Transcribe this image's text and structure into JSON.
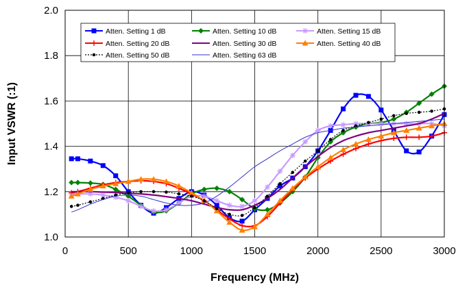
{
  "chart_data": {
    "type": "line",
    "xlabel": "Frequency (MHz)",
    "ylabel": "Input VSWR (:1)",
    "xlim": [
      0,
      3000
    ],
    "ylim": [
      1.0,
      2.0
    ],
    "x_ticks": [
      "0",
      "500",
      "1000",
      "1500",
      "2000",
      "2500",
      "3000"
    ],
    "y_ticks": [
      "1.0",
      "1.2",
      "1.4",
      "1.6",
      "1.8",
      "2.0"
    ],
    "grid": true,
    "legend_position": "top-left",
    "x": [
      50,
      100,
      200,
      300,
      400,
      500,
      600,
      700,
      800,
      900,
      1000,
      1100,
      1200,
      1300,
      1400,
      1500,
      1600,
      1700,
      1800,
      1900,
      2000,
      2100,
      2200,
      2300,
      2400,
      2500,
      2600,
      2700,
      2800,
      2900,
      3000
    ],
    "series": [
      {
        "name": "Atten. Setting 1 dB",
        "color": "#0000ff",
        "marker": "square",
        "values": [
          1.345,
          1.345,
          1.335,
          1.315,
          1.27,
          1.2,
          1.14,
          1.105,
          1.13,
          1.17,
          1.2,
          1.185,
          1.14,
          1.085,
          1.07,
          1.12,
          1.17,
          1.225,
          1.26,
          1.31,
          1.38,
          1.47,
          1.565,
          1.625,
          1.62,
          1.56,
          1.47,
          1.38,
          1.375,
          1.445,
          1.54
        ]
      },
      {
        "name": "Atten. Setting 10 dB",
        "color": "#008000",
        "marker": "diamond",
        "values": [
          1.24,
          1.24,
          1.238,
          1.232,
          1.21,
          1.18,
          1.14,
          1.11,
          1.115,
          1.15,
          1.19,
          1.21,
          1.215,
          1.2,
          1.165,
          1.125,
          1.12,
          1.15,
          1.2,
          1.265,
          1.35,
          1.42,
          1.46,
          1.485,
          1.5,
          1.505,
          1.52,
          1.55,
          1.59,
          1.63,
          1.665
        ]
      },
      {
        "name": "Atten. Setting 15 dB",
        "color": "#c89aff",
        "marker": "star",
        "values": [
          1.19,
          1.19,
          1.19,
          1.185,
          1.175,
          1.16,
          1.135,
          1.115,
          1.12,
          1.15,
          1.18,
          1.18,
          1.16,
          1.14,
          1.135,
          1.16,
          1.22,
          1.29,
          1.36,
          1.42,
          1.47,
          1.49,
          1.495,
          1.5,
          1.5,
          1.5,
          1.5,
          1.5,
          1.5,
          1.5,
          1.49
        ]
      },
      {
        "name": "Atten. Setting 20 dB",
        "color": "#ff0000",
        "marker": "plus",
        "values": [
          1.195,
          1.2,
          1.215,
          1.23,
          1.24,
          1.245,
          1.248,
          1.245,
          1.235,
          1.215,
          1.19,
          1.16,
          1.12,
          1.08,
          1.05,
          1.05,
          1.09,
          1.15,
          1.21,
          1.26,
          1.3,
          1.335,
          1.365,
          1.39,
          1.41,
          1.425,
          1.435,
          1.44,
          1.44,
          1.445,
          1.46
        ]
      },
      {
        "name": "Atten. Setting 30 dB",
        "color": "#800080",
        "marker": "none",
        "values": [
          1.2,
          1.2,
          1.2,
          1.198,
          1.196,
          1.193,
          1.19,
          1.185,
          1.178,
          1.17,
          1.16,
          1.145,
          1.13,
          1.12,
          1.12,
          1.14,
          1.17,
          1.21,
          1.26,
          1.31,
          1.355,
          1.395,
          1.425,
          1.445,
          1.46,
          1.47,
          1.48,
          1.49,
          1.5,
          1.52,
          1.545
        ]
      },
      {
        "name": "Atten. Setting 40 dB",
        "color": "#ff8000",
        "marker": "triangle",
        "values": [
          1.18,
          1.19,
          1.21,
          1.225,
          1.235,
          1.245,
          1.255,
          1.255,
          1.245,
          1.225,
          1.195,
          1.16,
          1.115,
          1.065,
          1.03,
          1.045,
          1.1,
          1.16,
          1.215,
          1.265,
          1.31,
          1.35,
          1.385,
          1.41,
          1.43,
          1.445,
          1.46,
          1.47,
          1.48,
          1.49,
          1.5
        ]
      },
      {
        "name": "Atten. Setting 50 dB",
        "color": "#000000",
        "marker": "dot",
        "dashed": true,
        "values": [
          1.135,
          1.14,
          1.155,
          1.17,
          1.185,
          1.195,
          1.2,
          1.2,
          1.198,
          1.19,
          1.18,
          1.16,
          1.125,
          1.1,
          1.095,
          1.13,
          1.18,
          1.235,
          1.285,
          1.335,
          1.38,
          1.43,
          1.47,
          1.49,
          1.505,
          1.52,
          1.535,
          1.545,
          1.55,
          1.555,
          1.565
        ]
      },
      {
        "name": "Atten. Setting 63 dB",
        "color": "#3333cc",
        "marker": "none",
        "thin": true,
        "values": [
          1.11,
          1.12,
          1.145,
          1.165,
          1.18,
          1.185,
          1.18,
          1.165,
          1.15,
          1.14,
          1.14,
          1.15,
          1.18,
          1.22,
          1.265,
          1.31,
          1.345,
          1.38,
          1.41,
          1.44,
          1.46,
          1.47,
          1.48,
          1.485,
          1.49,
          1.495,
          1.5,
          1.505,
          1.51,
          1.515,
          1.52
        ]
      }
    ]
  }
}
